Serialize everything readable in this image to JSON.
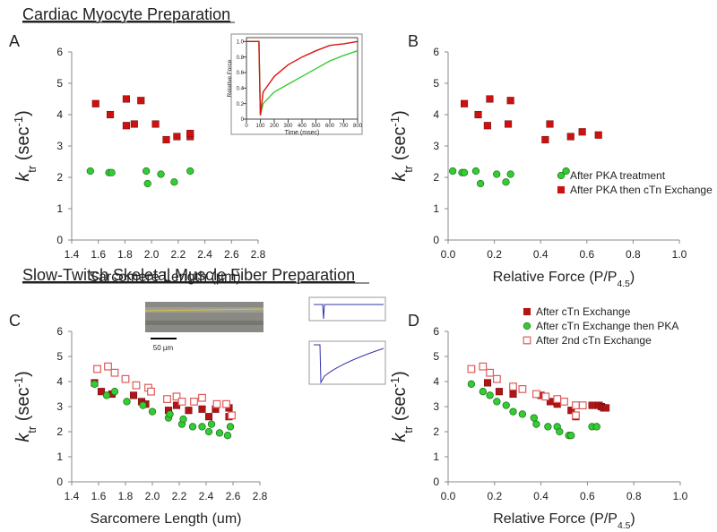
{
  "headings": [
    "Cardiac Myocyte Preparation",
    "Slow-Twitch Skeletal Muscle Fiber Preparation"
  ],
  "scale_bar": "50 µm",
  "chart_data": [
    {
      "type": "scatter",
      "label": "A",
      "xlabel": [
        {
          "text": "Sarcomere Length ("
        },
        {
          "text": "µ"
        },
        {
          "text": "m)"
        }
      ],
      "ylabel": [
        {
          "text": "k",
          "style": "italic"
        },
        {
          "text": "tr",
          "style": "sub"
        },
        {
          "text": " (sec"
        },
        {
          "text": "-1",
          "style": "sup"
        },
        {
          "text": ")"
        }
      ],
      "xlim": [
        1.4,
        2.8
      ],
      "ylim": [
        0,
        6
      ],
      "xticks": [
        1.4,
        1.6,
        1.8,
        {
          "value": 2,
          "label": "2.0"
        },
        2.2,
        2.4,
        2.6,
        2.8
      ],
      "yticks": [
        0,
        1,
        2,
        3,
        4,
        5,
        6
      ],
      "series": [
        {
          "color": "#33cc33",
          "marker": "circle",
          "filled": true,
          "x": [
            1.54,
            1.68,
            1.7,
            1.96,
            1.97,
            2.07,
            2.17,
            2.29
          ],
          "values": [
            2.2,
            2.15,
            2.15,
            2.2,
            1.8,
            2.1,
            1.85,
            2.2
          ]
        },
        {
          "color": "#cc1111",
          "marker": "square",
          "filled": true,
          "x": [
            1.58,
            1.69,
            1.81,
            1.81,
            1.87,
            1.92,
            2.03,
            2.11,
            2.19,
            2.29,
            2.29
          ],
          "values": [
            4.35,
            4.0,
            4.5,
            3.65,
            3.7,
            4.45,
            3.7,
            3.2,
            3.3,
            3.3,
            3.4
          ]
        }
      ]
    },
    {
      "type": "scatter",
      "label": "B",
      "xlabel": [
        {
          "text": "Relative Force (P/P"
        },
        {
          "text": "4.5",
          "style": "sub"
        },
        {
          "text": ")"
        }
      ],
      "ylabel": [
        {
          "text": "k",
          "style": "italic"
        },
        {
          "text": "tr",
          "style": "sub"
        },
        {
          "text": " (sec"
        },
        {
          "text": "-1",
          "style": "sup"
        },
        {
          "text": ")"
        }
      ],
      "xlim": [
        0,
        1
      ],
      "ylim": [
        0,
        6
      ],
      "xticks": [
        {
          "value": 0,
          "label": "0.0"
        },
        0.2,
        0.4,
        0.6,
        0.8,
        {
          "value": 1,
          "label": "1.0"
        }
      ],
      "yticks": [
        0,
        1,
        2,
        3,
        4,
        5,
        6
      ],
      "legend": "lower right",
      "series": [
        {
          "name": "After PKA treatment",
          "color": "#33cc33",
          "marker": "circle",
          "filled": true,
          "x": [
            0.02,
            0.06,
            0.07,
            0.12,
            0.14,
            0.21,
            0.25,
            0.27,
            0.51
          ],
          "values": [
            2.2,
            2.15,
            2.15,
            2.2,
            1.8,
            2.1,
            1.85,
            2.1,
            2.2
          ]
        },
        {
          "name": "After PKA then cTn Exchange",
          "color": "#cc1111",
          "marker": "square",
          "filled": true,
          "x": [
            0.07,
            0.13,
            0.18,
            0.17,
            0.26,
            0.27,
            0.44,
            0.42,
            0.53,
            0.58,
            0.65
          ],
          "values": [
            4.35,
            4.0,
            4.5,
            3.65,
            3.7,
            4.45,
            3.7,
            3.2,
            3.3,
            3.45,
            3.35
          ]
        }
      ]
    },
    {
      "type": "scatter",
      "label": "C",
      "xlabel": [
        {
          "text": "Sarcomere Length (um)"
        }
      ],
      "ylabel": [
        {
          "text": "k",
          "style": "italic"
        },
        {
          "text": "tr",
          "style": "sub"
        },
        {
          "text": " (sec"
        },
        {
          "text": "-1",
          "style": "sup"
        },
        {
          "text": ")"
        }
      ],
      "xlim": [
        1.4,
        2.8
      ],
      "ylim": [
        0,
        6
      ],
      "xticks": [
        1.4,
        1.6,
        1.8,
        {
          "value": 2,
          "label": "2.0"
        },
        2.2,
        2.4,
        2.6,
        2.8
      ],
      "yticks": [
        0,
        1,
        2,
        3,
        4,
        5,
        6
      ],
      "series": [
        {
          "color": "#b01515",
          "marker": "square",
          "filled": true,
          "x": [
            1.57,
            1.62,
            1.7,
            1.86,
            1.92,
            1.95,
            2.12,
            2.18,
            2.27,
            2.37,
            2.42,
            2.47,
            2.57,
            2.57
          ],
          "values": [
            3.95,
            3.6,
            3.5,
            3.45,
            3.2,
            3.1,
            2.85,
            3.05,
            2.85,
            2.9,
            2.6,
            2.9,
            2.95,
            2.6
          ]
        },
        {
          "color": "#33cc33",
          "marker": "circle",
          "filled": true,
          "x": [
            1.57,
            1.66,
            1.72,
            1.81,
            1.93,
            2.0,
            2.12,
            2.13,
            2.22,
            2.23,
            2.3,
            2.37,
            2.42,
            2.44,
            2.5,
            2.56,
            2.58
          ],
          "values": [
            3.9,
            3.45,
            3.6,
            3.2,
            3.05,
            2.8,
            2.55,
            2.7,
            2.3,
            2.5,
            2.2,
            2.2,
            2.0,
            2.3,
            1.95,
            1.85,
            2.2
          ]
        },
        {
          "color": "#e05a5a",
          "marker": "square",
          "filled": false,
          "x": [
            1.59,
            1.67,
            1.72,
            1.8,
            1.88,
            1.97,
            1.99,
            2.11,
            2.18,
            2.22,
            2.31,
            2.37,
            2.48,
            2.55,
            2.59
          ],
          "values": [
            4.5,
            4.6,
            4.35,
            4.1,
            3.85,
            3.75,
            3.6,
            3.3,
            3.4,
            3.2,
            3.2,
            3.35,
            3.1,
            3.1,
            2.65
          ]
        }
      ]
    },
    {
      "type": "scatter",
      "label": "D",
      "xlabel": [
        {
          "text": "Relative Force (P/P"
        },
        {
          "text": "4.5",
          "style": "sub"
        },
        {
          "text": ")"
        }
      ],
      "ylabel": [
        {
          "text": "k",
          "style": "italic"
        },
        {
          "text": "tr",
          "style": "sub"
        },
        {
          "text": " (sec"
        },
        {
          "text": "-1",
          "style": "sup"
        },
        {
          "text": ")"
        }
      ],
      "xlim": [
        0,
        1
      ],
      "ylim": [
        0,
        6
      ],
      "xticks": [
        {
          "value": 0,
          "label": "0.0"
        },
        0.2,
        0.4,
        0.6,
        0.8,
        {
          "value": 1,
          "label": "1.0"
        }
      ],
      "yticks": [
        0,
        1,
        2,
        3,
        4,
        5,
        6
      ],
      "legend": "upper right",
      "series": [
        {
          "name": "After cTn Exchange",
          "color": "#b01515",
          "marker": "square",
          "filled": true,
          "x": [
            0.17,
            0.22,
            0.28,
            0.4,
            0.44,
            0.47,
            0.53,
            0.55,
            0.62,
            0.65,
            0.66,
            0.67,
            0.68
          ],
          "values": [
            3.95,
            3.6,
            3.5,
            3.45,
            3.2,
            3.1,
            2.85,
            2.6,
            3.05,
            3.05,
            3.0,
            2.95,
            2.95
          ]
        },
        {
          "name": "After cTn Exchange then PKA",
          "color": "#33cc33",
          "marker": "circle",
          "filled": true,
          "x": [
            0.1,
            0.15,
            0.18,
            0.21,
            0.25,
            0.28,
            0.32,
            0.37,
            0.38,
            0.43,
            0.47,
            0.48,
            0.52,
            0.53,
            0.62,
            0.64
          ],
          "values": [
            3.9,
            3.6,
            3.45,
            3.2,
            3.05,
            2.8,
            2.7,
            2.55,
            2.3,
            2.2,
            2.2,
            2.0,
            1.85,
            1.85,
            2.2,
            2.2
          ]
        },
        {
          "name": "After 2nd cTn Exchange",
          "color": "#e05a5a",
          "marker": "square",
          "filled": false,
          "x": [
            0.1,
            0.15,
            0.18,
            0.21,
            0.28,
            0.32,
            0.38,
            0.42,
            0.47,
            0.5,
            0.55,
            0.58,
            0.55
          ],
          "values": [
            4.5,
            4.6,
            4.35,
            4.1,
            3.8,
            3.7,
            3.5,
            3.4,
            3.3,
            3.2,
            3.05,
            3.05,
            2.65
          ]
        }
      ]
    },
    {
      "type": "line",
      "xlabel": [
        {
          "text": "Time (msec)"
        }
      ],
      "ylabel": [
        {
          "text": "Relative Force"
        }
      ],
      "xlim": [
        0,
        800
      ],
      "ylim": [
        0,
        1.05
      ],
      "xticks": [
        0,
        100,
        200,
        300,
        400,
        500,
        600,
        700,
        800
      ],
      "yticks": [
        0,
        0.2,
        0.4,
        0.6,
        0.8,
        {
          "value": 1,
          "label": "1.0"
        }
      ],
      "series": [
        {
          "color": "#33cc33",
          "x": [
            0,
            90,
            100,
            120,
            200,
            300,
            400,
            500,
            600,
            700,
            800
          ],
          "values": [
            1,
            1,
            0.05,
            0.2,
            0.35,
            0.45,
            0.55,
            0.65,
            0.75,
            0.82,
            0.88
          ]
        },
        {
          "color": "#dd1111",
          "x": [
            0,
            90,
            100,
            120,
            200,
            300,
            400,
            500,
            600,
            700,
            800
          ],
          "values": [
            1,
            1,
            0.05,
            0.35,
            0.55,
            0.7,
            0.8,
            0.88,
            0.95,
            0.97,
            1.0
          ]
        }
      ]
    }
  ]
}
